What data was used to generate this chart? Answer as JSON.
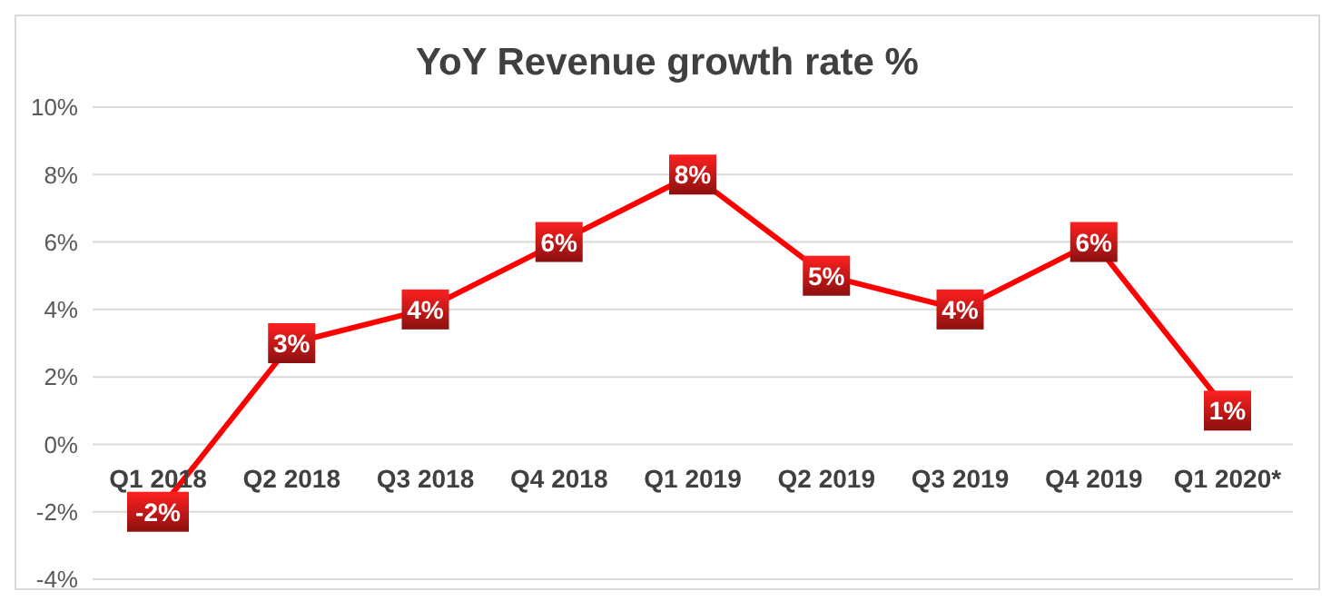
{
  "chart_data": {
    "type": "line",
    "title": "YoY Revenue growth rate %",
    "categories": [
      "Q1 2018",
      "Q2 2018",
      "Q3 2018",
      "Q4 2018",
      "Q1 2019",
      "Q2 2019",
      "Q3 2019",
      "Q4 2019",
      "Q1 2020*"
    ],
    "series": [
      {
        "color": "#ff0000",
        "values": [
          -2,
          3,
          4,
          6,
          8,
          5,
          4,
          6,
          1
        ],
        "value_labels": [
          "-2%",
          "3%",
          "4%",
          "6%",
          "8%",
          "5%",
          "4%",
          "6%",
          "1%"
        ]
      }
    ],
    "ylim": [
      -4,
      10
    ],
    "yticks": [
      {
        "value": -4,
        "label": "-4%"
      },
      {
        "value": -2,
        "label": "-2%"
      },
      {
        "value": 0,
        "label": "0%"
      },
      {
        "value": 2,
        "label": "2%"
      },
      {
        "value": 4,
        "label": "4%"
      },
      {
        "value": 6,
        "label": "6%"
      },
      {
        "value": 8,
        "label": "8%"
      },
      {
        "value": 10,
        "label": "10%"
      }
    ],
    "grid": "y",
    "marker": "square",
    "line_style": "solid"
  }
}
